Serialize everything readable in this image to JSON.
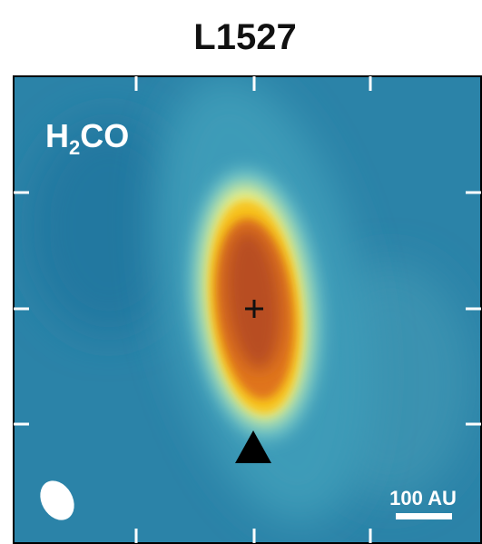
{
  "header": {
    "title": "L1527"
  },
  "panel": {
    "molecule": {
      "main": "H",
      "sub": "2",
      "rest": "CO"
    },
    "scale_bar": "100 AU"
  }
}
